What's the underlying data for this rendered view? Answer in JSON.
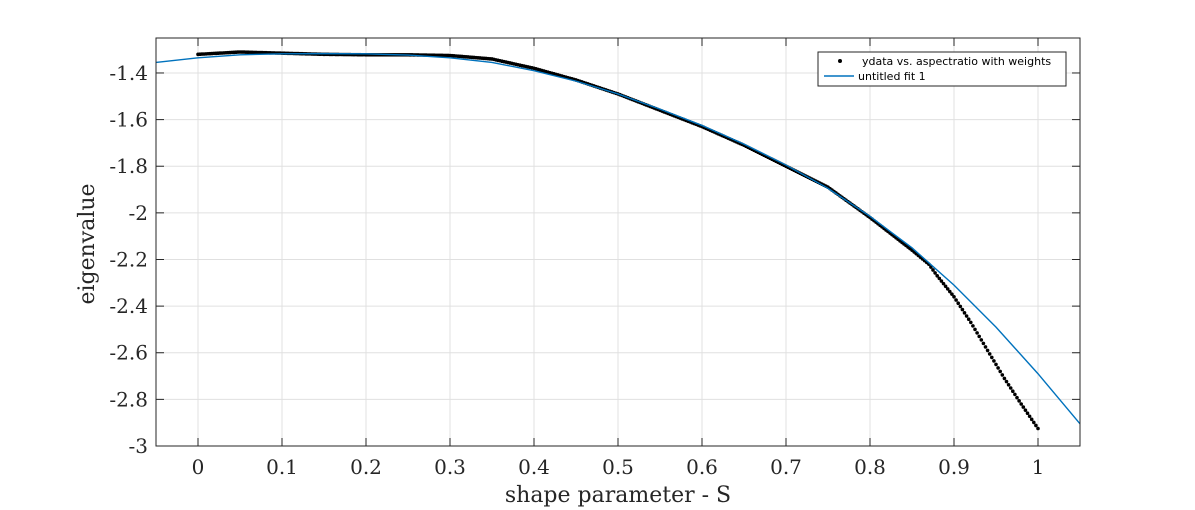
{
  "chart_data": {
    "type": "scatter",
    "title": "",
    "xlabel": "shape parameter - S",
    "ylabel": "eigenvalue",
    "xlim": [
      -0.05,
      1.05
    ],
    "ylim": [
      -3.0,
      -1.25
    ],
    "xticks": [
      0,
      0.1,
      0.2,
      0.3,
      0.4,
      0.5,
      0.6,
      0.7,
      0.8,
      0.9,
      1
    ],
    "xtick_labels": [
      "0",
      "0.1",
      "0.2",
      "0.3",
      "0.4",
      "0.5",
      "0.6",
      "0.7",
      "0.8",
      "0.9",
      "1"
    ],
    "yticks": [
      -3,
      -2.8,
      -2.6,
      -2.4,
      -2.2,
      -2,
      -1.8,
      -1.6,
      -1.4
    ],
    "ytick_labels": [
      "-3",
      "-2.8",
      "-2.6",
      "-2.4",
      "-2.2",
      "-2",
      "-1.8",
      "-1.6",
      "-1.4"
    ],
    "grid": true,
    "legend_position": "top-right",
    "series": [
      {
        "name": "ydata vs. aspectratio with weights",
        "kind": "scatter",
        "color": "#000000",
        "x": [
          0.0,
          0.05,
          0.1,
          0.15,
          0.2,
          0.25,
          0.3,
          0.35,
          0.4,
          0.45,
          0.5,
          0.55,
          0.6,
          0.65,
          0.7,
          0.75,
          0.8,
          0.85,
          0.87,
          0.88,
          0.9,
          0.92,
          0.94,
          0.96,
          0.98,
          1.0
        ],
        "y": [
          -1.32,
          -1.31,
          -1.315,
          -1.32,
          -1.322,
          -1.322,
          -1.325,
          -1.34,
          -1.38,
          -1.43,
          -1.49,
          -1.56,
          -1.63,
          -1.71,
          -1.8,
          -1.89,
          -2.02,
          -2.16,
          -2.22,
          -2.27,
          -2.36,
          -2.47,
          -2.59,
          -2.71,
          -2.82,
          -2.925
        ]
      },
      {
        "name": "untitled fit 1",
        "kind": "line",
        "color": "#0072BD",
        "x": [
          -0.05,
          0.0,
          0.05,
          0.1,
          0.15,
          0.2,
          0.25,
          0.3,
          0.35,
          0.4,
          0.45,
          0.5,
          0.55,
          0.6,
          0.65,
          0.7,
          0.75,
          0.8,
          0.85,
          0.9,
          0.95,
          1.0,
          1.05
        ],
        "y": [
          -1.355,
          -1.335,
          -1.322,
          -1.318,
          -1.317,
          -1.318,
          -1.323,
          -1.335,
          -1.355,
          -1.39,
          -1.435,
          -1.49,
          -1.555,
          -1.625,
          -1.705,
          -1.795,
          -1.895,
          -2.015,
          -2.15,
          -2.31,
          -2.49,
          -2.69,
          -2.905
        ]
      }
    ]
  }
}
